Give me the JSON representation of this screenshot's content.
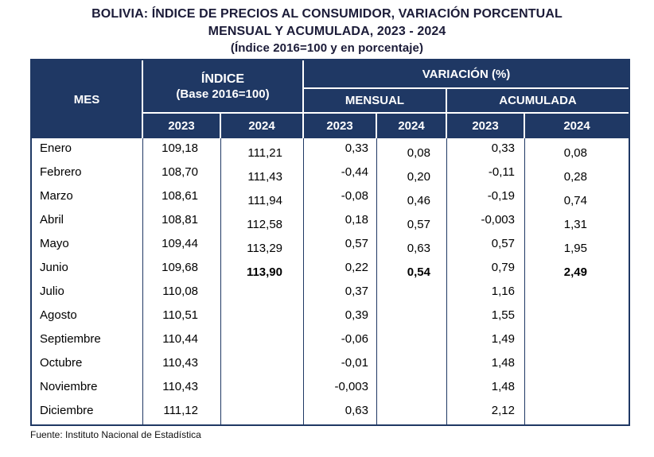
{
  "title": {
    "line1": "BOLIVIA: ÍNDICE DE PRECIOS AL CONSUMIDOR, VARIACIÓN PORCENTUAL",
    "line2": "MENSUAL Y ACUMULADA, 2023 - 2024",
    "line3": "(Índice 2016=100 y en porcentaje)"
  },
  "table": {
    "headers": {
      "mes": "MES",
      "indice_line1": "ÍNDICE",
      "indice_line2": "(Base 2016=100)",
      "variacion": "VARIACIÓN (%)",
      "mensual": "MENSUAL",
      "acumulada": "ACUMULADA",
      "years": [
        "2023",
        "2024",
        "2023",
        "2024",
        "2023",
        "2024"
      ]
    },
    "rows": [
      {
        "mes": "Enero",
        "ind_2023": "109,18",
        "ind_2024": "111,21",
        "men_2023": "0,33",
        "men_2024": "0,08",
        "acu_2023": "0,33",
        "acu_2024": "0,08"
      },
      {
        "mes": "Febrero",
        "ind_2023": "108,70",
        "ind_2024": "111,43",
        "men_2023": "-0,44",
        "men_2024": "0,20",
        "acu_2023": "-0,11",
        "acu_2024": "0,28"
      },
      {
        "mes": "Marzo",
        "ind_2023": "108,61",
        "ind_2024": "111,94",
        "men_2023": "-0,08",
        "men_2024": "0,46",
        "acu_2023": "-0,19",
        "acu_2024": "0,74"
      },
      {
        "mes": "Abril",
        "ind_2023": "108,81",
        "ind_2024": "112,58",
        "men_2023": "0,18",
        "men_2024": "0,57",
        "acu_2023": "-0,003",
        "acu_2024": "1,31"
      },
      {
        "mes": "Mayo",
        "ind_2023": "109,44",
        "ind_2024": "113,29",
        "men_2023": "0,57",
        "men_2024": "0,63",
        "acu_2023": "0,57",
        "acu_2024": "1,95"
      },
      {
        "mes": "Junio",
        "ind_2023": "109,68",
        "ind_2024": "113,90",
        "men_2023": "0,22",
        "men_2024": "0,54",
        "acu_2023": "0,79",
        "acu_2024": "2,49",
        "bold": [
          "ind_2024",
          "men_2024",
          "acu_2024"
        ]
      },
      {
        "mes": "Julio",
        "ind_2023": "110,08",
        "ind_2024": "",
        "men_2023": "0,37",
        "men_2024": "",
        "acu_2023": "1,16",
        "acu_2024": ""
      },
      {
        "mes": "Agosto",
        "ind_2023": "110,51",
        "ind_2024": "",
        "men_2023": "0,39",
        "men_2024": "",
        "acu_2023": "1,55",
        "acu_2024": ""
      },
      {
        "mes": "Septiembre",
        "ind_2023": "110,44",
        "ind_2024": "",
        "men_2023": "-0,06",
        "men_2024": "",
        "acu_2023": "1,49",
        "acu_2024": ""
      },
      {
        "mes": "Octubre",
        "ind_2023": "110,43",
        "ind_2024": "",
        "men_2023": "-0,01",
        "men_2024": "",
        "acu_2023": "1,48",
        "acu_2024": ""
      },
      {
        "mes": "Noviembre",
        "ind_2023": "110,43",
        "ind_2024": "",
        "men_2023": "-0,003",
        "men_2024": "",
        "acu_2023": "1,48",
        "acu_2024": ""
      },
      {
        "mes": "Diciembre",
        "ind_2023": "111,12",
        "ind_2024": "",
        "men_2023": "0,63",
        "men_2024": "",
        "acu_2023": "2,12",
        "acu_2024": ""
      }
    ]
  },
  "footer": {
    "source": "Fuente: Instituto Nacional de Estadística"
  },
  "colors": {
    "header_bg": "#1f3864",
    "border": "#1f3864",
    "title_text": "#1b1b38"
  },
  "chart_data": {
    "type": "table",
    "title": "BOLIVIA: ÍNDICE DE PRECIOS AL CONSUMIDOR, VARIACIÓN PORCENTUAL MENSUAL Y ACUMULADA, 2023 - 2024 (Índice 2016=100 y en porcentaje)",
    "categories": [
      "Enero",
      "Febrero",
      "Marzo",
      "Abril",
      "Mayo",
      "Junio",
      "Julio",
      "Agosto",
      "Septiembre",
      "Octubre",
      "Noviembre",
      "Diciembre"
    ],
    "series": [
      {
        "name": "Índice (Base 2016=100) 2023",
        "values": [
          109.18,
          108.7,
          108.61,
          108.81,
          109.44,
          109.68,
          110.08,
          110.51,
          110.44,
          110.43,
          110.43,
          111.12
        ]
      },
      {
        "name": "Índice (Base 2016=100) 2024",
        "values": [
          111.21,
          111.43,
          111.94,
          112.58,
          113.29,
          113.9,
          null,
          null,
          null,
          null,
          null,
          null
        ]
      },
      {
        "name": "Variación mensual 2023 (%)",
        "values": [
          0.33,
          -0.44,
          -0.08,
          0.18,
          0.57,
          0.22,
          0.37,
          0.39,
          -0.06,
          -0.01,
          -0.003,
          0.63
        ]
      },
      {
        "name": "Variación mensual 2024 (%)",
        "values": [
          0.08,
          0.2,
          0.46,
          0.57,
          0.63,
          0.54,
          null,
          null,
          null,
          null,
          null,
          null
        ]
      },
      {
        "name": "Variación acumulada 2023 (%)",
        "values": [
          0.33,
          -0.11,
          -0.19,
          -0.003,
          0.57,
          0.79,
          1.16,
          1.55,
          1.49,
          1.48,
          1.48,
          2.12
        ]
      },
      {
        "name": "Variación acumulada 2024 (%)",
        "values": [
          0.08,
          0.28,
          0.74,
          1.31,
          1.95,
          2.49,
          null,
          null,
          null,
          null,
          null,
          null
        ]
      }
    ],
    "source": "Fuente: Instituto Nacional de Estadística"
  }
}
